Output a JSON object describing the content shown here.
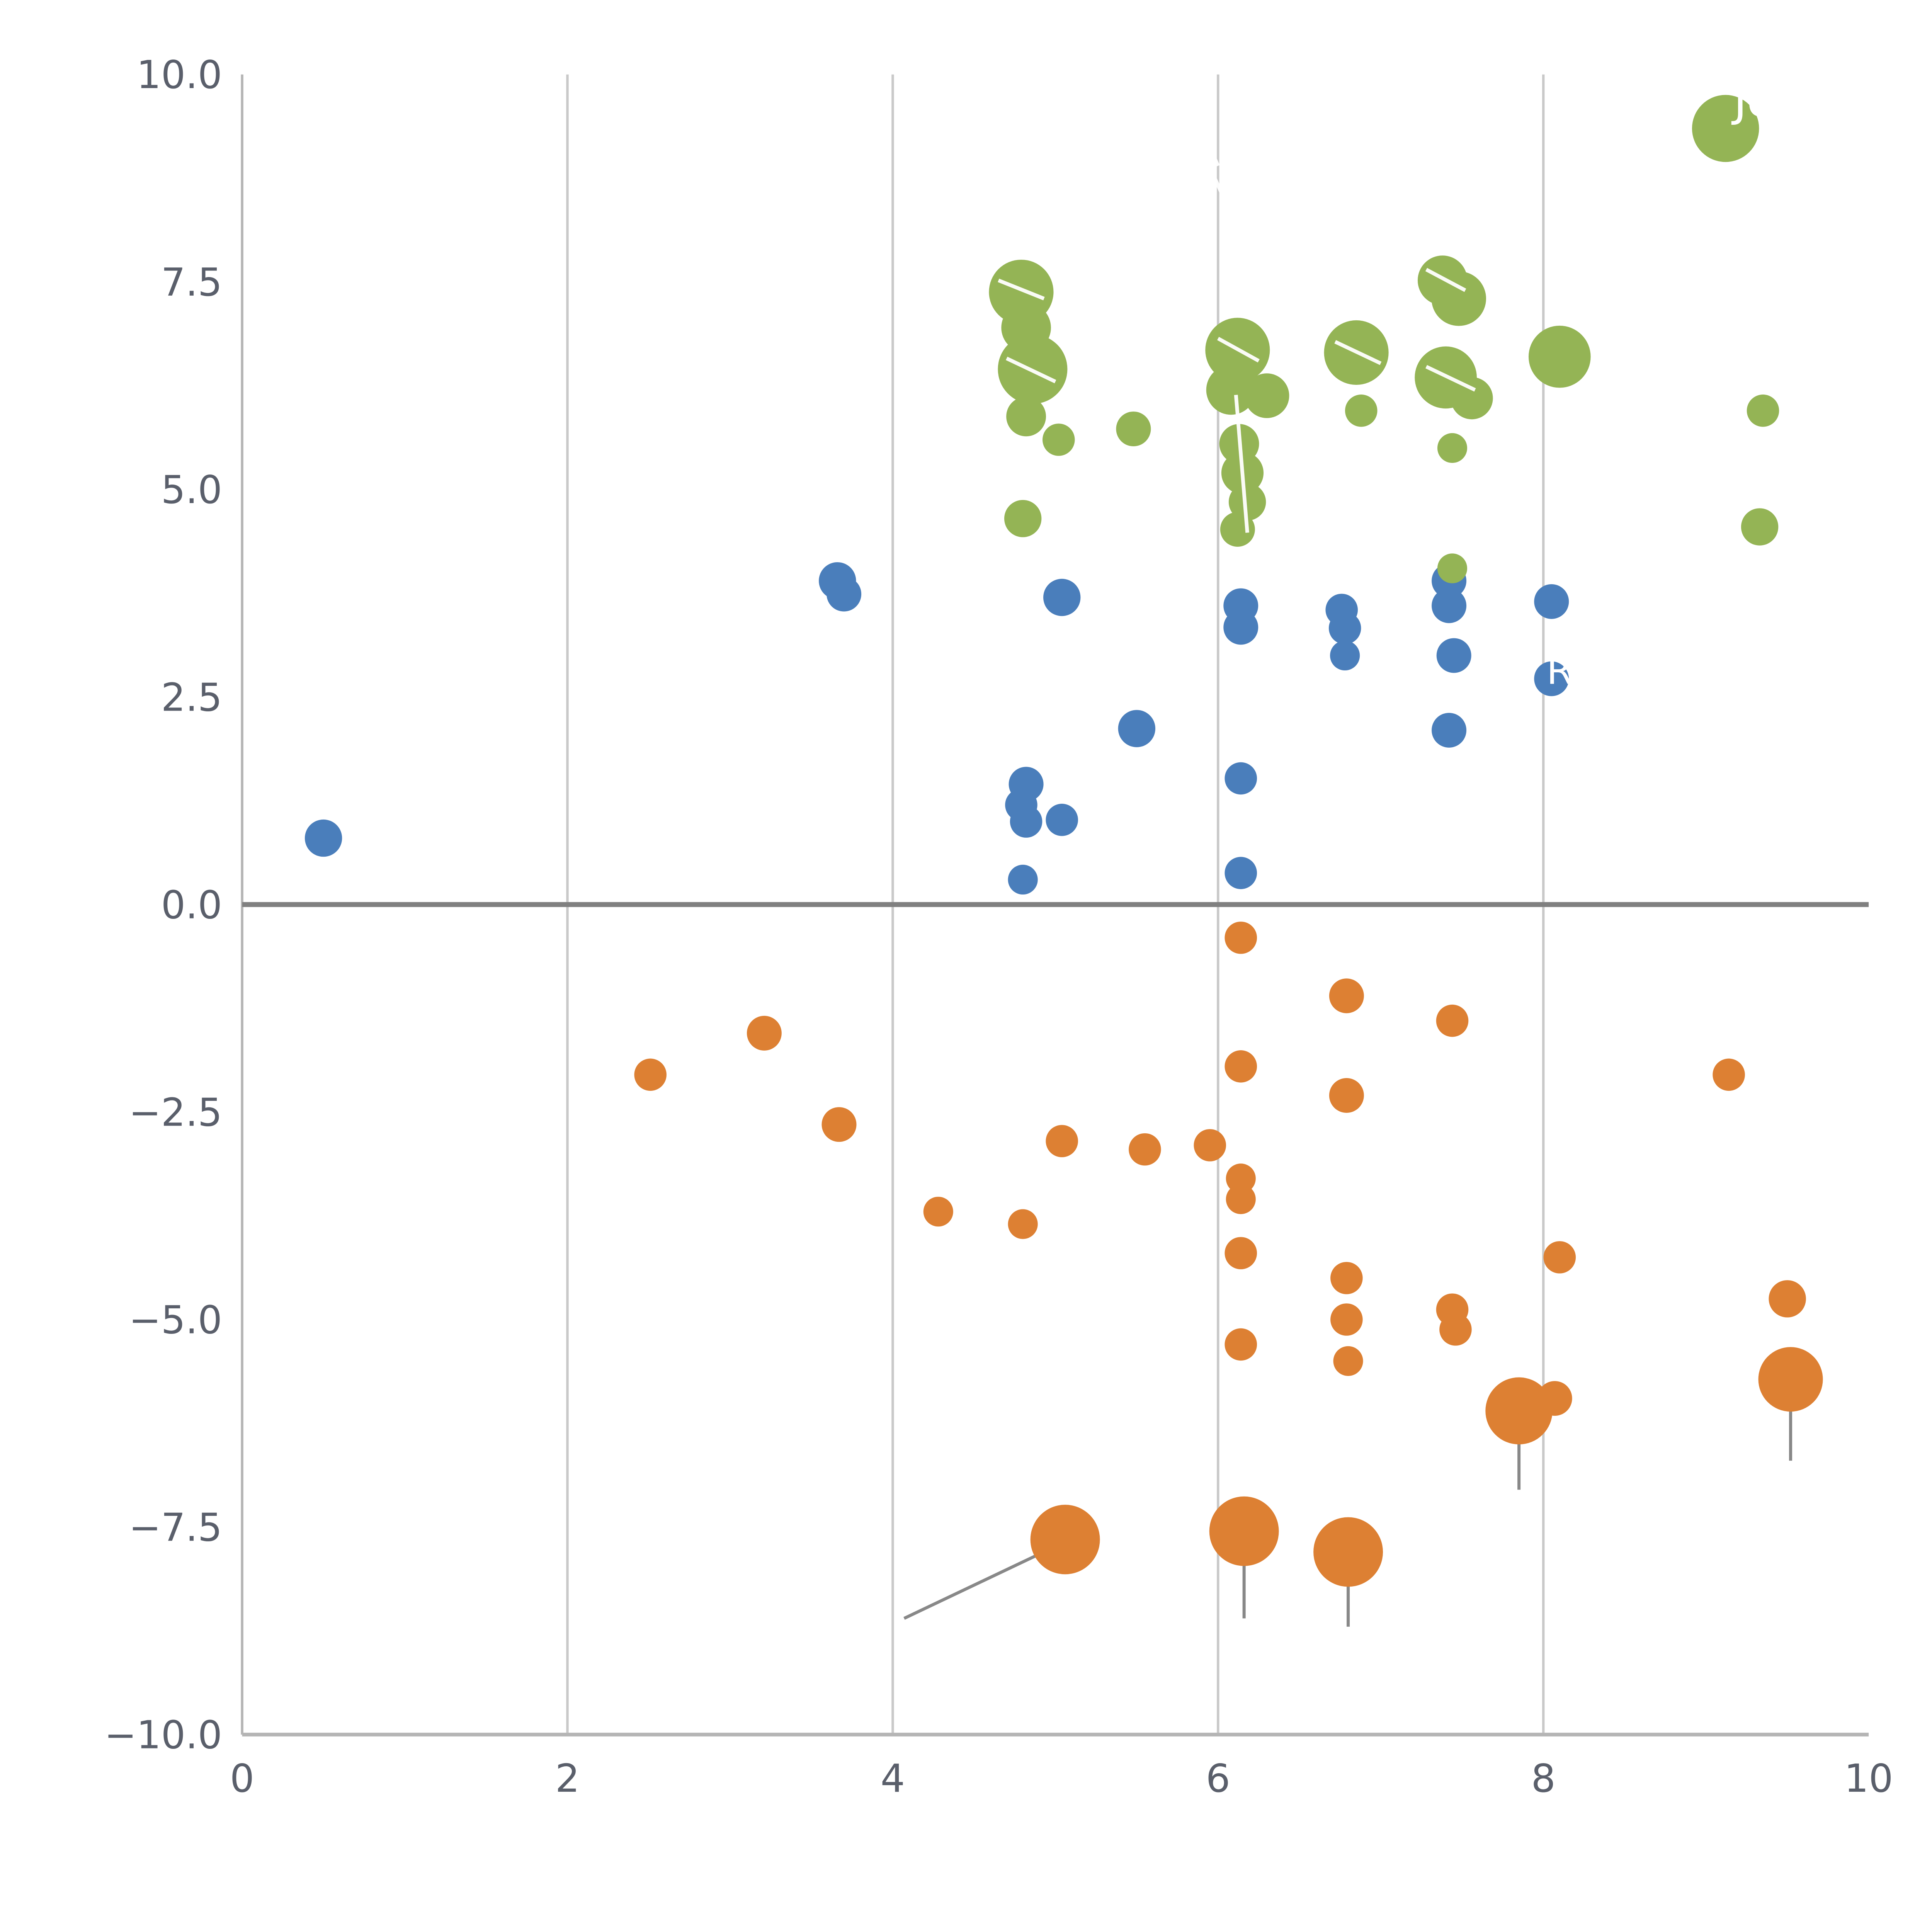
{
  "chart_data": {
    "type": "scatter",
    "title": "",
    "xlabel": "",
    "ylabel": "",
    "xlim": [
      0,
      10
    ],
    "ylim": [
      -10,
      10
    ],
    "grid": "vertical-only",
    "legend": "none",
    "x_ticks": [
      0,
      2,
      4,
      6,
      8,
      10
    ],
    "x_tick_labels": [
      "0",
      "2",
      "4",
      "6",
      "8",
      "10"
    ],
    "y_ticks": [
      -10,
      -7.5,
      -5,
      -2.5,
      0,
      2.5,
      5,
      7.5,
      10
    ],
    "y_tick_labels": [
      "−10.0",
      "−7.5",
      "−5.0",
      "−2.5",
      "0.0",
      "2.5",
      "5.0",
      "7.5",
      "10.0"
    ],
    "vertical_gridlines_at_x": [
      2,
      4,
      6,
      8
    ],
    "zero_line_y": 0,
    "colors": {
      "grid": "#c9c9c9",
      "zero_line": "#808080",
      "spine": "#b5b5b5",
      "tick_label": "#5a5f6b",
      "leader_line": "#888888",
      "annotation": "#ffffff"
    },
    "series": [
      {
        "name": "blue",
        "color": "#4a7ebb",
        "points": [
          [
            0.5,
            0.8,
            15
          ],
          [
            3.66,
            3.9,
            15
          ],
          [
            3.7,
            3.74,
            14
          ],
          [
            5.04,
            3.7,
            15
          ],
          [
            5.5,
            2.12,
            15
          ],
          [
            4.82,
            1.45,
            14
          ],
          [
            4.79,
            1.2,
            13
          ],
          [
            4.82,
            1.0,
            13
          ],
          [
            5.04,
            1.02,
            13
          ],
          [
            4.8,
            0.3,
            12
          ],
          [
            6.14,
            3.6,
            14
          ],
          [
            6.14,
            3.34,
            14
          ],
          [
            6.14,
            1.52,
            13
          ],
          [
            6.14,
            0.38,
            13
          ],
          [
            6.76,
            3.55,
            13
          ],
          [
            6.78,
            3.33,
            13
          ],
          [
            6.78,
            3.0,
            12
          ],
          [
            7.42,
            3.9,
            14
          ],
          [
            7.42,
            3.6,
            14
          ],
          [
            7.45,
            3.0,
            14
          ],
          [
            7.42,
            2.1,
            14
          ],
          [
            8.05,
            3.65,
            14
          ],
          [
            8.05,
            2.72,
            14
          ]
        ]
      },
      {
        "name": "green",
        "color": "#94b455",
        "points": [
          [
            9.12,
            9.35,
            27
          ],
          [
            4.79,
            7.38,
            26
          ],
          [
            4.82,
            6.95,
            20
          ],
          [
            4.86,
            6.45,
            28
          ],
          [
            4.82,
            5.88,
            16
          ],
          [
            5.02,
            5.6,
            13
          ],
          [
            5.48,
            5.73,
            14
          ],
          [
            4.8,
            4.65,
            15
          ],
          [
            6.12,
            6.68,
            26
          ],
          [
            6.08,
            6.2,
            20
          ],
          [
            6.3,
            6.13,
            18
          ],
          [
            6.13,
            5.55,
            16
          ],
          [
            6.15,
            5.2,
            17
          ],
          [
            6.18,
            4.85,
            15
          ],
          [
            6.12,
            4.52,
            14
          ],
          [
            6.85,
            6.65,
            26
          ],
          [
            6.88,
            5.95,
            13
          ],
          [
            7.38,
            7.52,
            20
          ],
          [
            7.48,
            7.3,
            22
          ],
          [
            7.4,
            6.35,
            25
          ],
          [
            7.56,
            6.1,
            17
          ],
          [
            7.44,
            5.5,
            12
          ],
          [
            7.44,
            4.05,
            12
          ],
          [
            8.1,
            6.6,
            25
          ],
          [
            9.35,
            5.95,
            13
          ],
          [
            9.33,
            4.55,
            15
          ]
        ]
      },
      {
        "name": "orange",
        "color": "#dd8033",
        "points": [
          [
            6.14,
            -0.4,
            13
          ],
          [
            6.79,
            -1.1,
            14
          ],
          [
            7.44,
            -1.4,
            13
          ],
          [
            3.21,
            -1.55,
            14
          ],
          [
            2.51,
            -2.05,
            13
          ],
          [
            3.67,
            -2.65,
            14
          ],
          [
            6.14,
            -1.95,
            13
          ],
          [
            6.79,
            -2.3,
            14
          ],
          [
            5.04,
            -2.85,
            13
          ],
          [
            5.55,
            -2.95,
            13
          ],
          [
            5.95,
            -2.9,
            13
          ],
          [
            9.14,
            -2.05,
            13
          ],
          [
            4.28,
            -3.7,
            12
          ],
          [
            4.8,
            -3.85,
            12
          ],
          [
            6.14,
            -3.3,
            12
          ],
          [
            6.14,
            -3.55,
            12
          ],
          [
            6.14,
            -4.2,
            13
          ],
          [
            6.79,
            -4.5,
            13
          ],
          [
            6.79,
            -5.0,
            13
          ],
          [
            6.8,
            -5.5,
            12
          ],
          [
            6.14,
            -5.3,
            13
          ],
          [
            7.44,
            -4.88,
            13
          ],
          [
            7.46,
            -5.12,
            13
          ],
          [
            8.1,
            -4.25,
            13
          ],
          [
            7.85,
            -6.1,
            27
          ],
          [
            8.07,
            -5.95,
            14
          ],
          [
            9.5,
            -4.75,
            15
          ],
          [
            9.52,
            -5.72,
            26
          ],
          [
            5.06,
            -7.65,
            28
          ],
          [
            6.16,
            -7.55,
            28
          ],
          [
            6.8,
            -7.8,
            28
          ]
        ]
      }
    ],
    "leader_lines": [
      [
        4.07,
        -8.6,
        4.95,
        -7.78
      ],
      [
        6.16,
        -7.9,
        6.16,
        -8.6
      ],
      [
        6.8,
        -8.1,
        6.8,
        -8.7
      ],
      [
        7.85,
        -6.5,
        7.85,
        -7.05
      ],
      [
        9.52,
        -6.1,
        9.52,
        -6.7
      ]
    ],
    "white_segments": [
      [
        4.65,
        7.52,
        4.93,
        7.3
      ],
      [
        4.7,
        6.58,
        5.0,
        6.3
      ],
      [
        6.0,
        6.82,
        6.25,
        6.55
      ],
      [
        6.72,
        6.78,
        7.0,
        6.52
      ],
      [
        7.28,
        7.65,
        7.52,
        7.4
      ],
      [
        7.28,
        6.48,
        7.58,
        6.2
      ],
      [
        6.11,
        6.14,
        6.18,
        4.48
      ],
      [
        5.93,
        9.2,
        6.0,
        8.9
      ],
      [
        5.98,
        8.75,
        6.05,
        8.45
      ]
    ],
    "annotations": [
      {
        "text": "Jo",
        "x": 9.17,
        "y": 9.5,
        "size": 36
      },
      {
        "text": "R",
        "x": 8.02,
        "y": 2.66,
        "size": 30
      }
    ]
  },
  "layout_labels": {
    "figure_name": "bubble-scatter-chart"
  }
}
